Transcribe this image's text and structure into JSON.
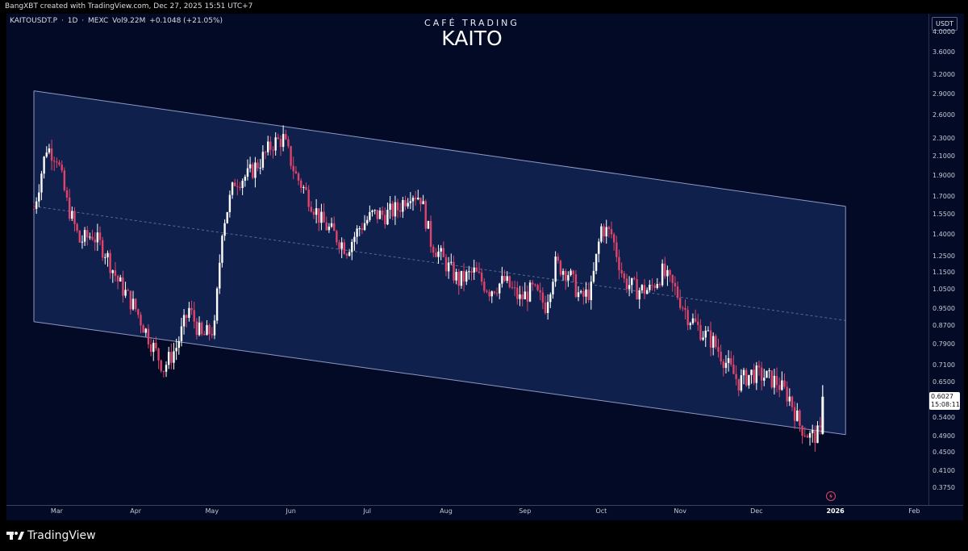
{
  "header": {
    "creator_line": "BangXBT created with TradingView.com, Dec 27, 2025 15:51 UTC+7",
    "symbol": "KAITOUSDT.P",
    "separator1": "·",
    "interval": "1D",
    "separator2": "·",
    "exchange": "MEXC",
    "volume": "Vol9.22M",
    "change": "+0.1048 (+21.05%)"
  },
  "watermark": {
    "brand": "CAFÉ TRADING",
    "coin": "KAITO"
  },
  "price_axis": {
    "unit": "USDT",
    "labels": [
      "4.0000",
      "3.6000",
      "3.2000",
      "2.9000",
      "2.6000",
      "2.3000",
      "2.1000",
      "1.9000",
      "1.7000",
      "1.5500",
      "1.4000",
      "1.2500",
      "1.1500",
      "1.0500",
      "0.9500",
      "0.8700",
      "0.7900",
      "0.7100",
      "0.6500",
      "0.5900",
      "0.5400",
      "0.4900",
      "0.4500",
      "0.4100",
      "0.3750"
    ],
    "current_price": "0.6027",
    "countdown": "15:08:11"
  },
  "time_axis": {
    "labels": [
      "Mar",
      "Apr",
      "May",
      "Jun",
      "Jul",
      "Aug",
      "Sep",
      "Oct",
      "Nov",
      "Dec",
      "2026",
      "Feb"
    ]
  },
  "footer": {
    "logo_text": "TradingView"
  },
  "colors": {
    "background": "#030a26",
    "up_candle": "#ffffff",
    "down_candle": "#e0446a",
    "channel_fill": "#14285a",
    "channel_line": "#8d99c4"
  },
  "icons": [
    "tradingview-logo-icon",
    "flash-icon"
  ],
  "chart_data": {
    "type": "candlestick",
    "symbol": "KAITOUSDT.P",
    "interval": "1D",
    "yscale": "log",
    "x_range": [
      "2025-02-20",
      "2026-02-05"
    ],
    "y_range": [
      0.35,
      4.1
    ],
    "channel": {
      "upper": [
        [
          "2025-02-20",
          2.95
        ],
        [
          "2026-01-05",
          1.62
        ]
      ],
      "lower": [
        [
          "2025-02-20",
          0.89
        ],
        [
          "2026-01-05",
          0.495
        ]
      ]
    },
    "approx_daily_closes": [
      [
        "2025-02-20",
        1.6
      ],
      [
        "2025-02-25",
        2.2
      ],
      [
        "2025-03-01",
        2.1
      ],
      [
        "2025-03-05",
        1.65
      ],
      [
        "2025-03-10",
        1.35
      ],
      [
        "2025-03-15",
        1.4
      ],
      [
        "2025-03-20",
        1.28
      ],
      [
        "2025-03-25",
        1.1
      ],
      [
        "2025-04-01",
        0.95
      ],
      [
        "2025-04-07",
        0.8
      ],
      [
        "2025-04-12",
        0.7
      ],
      [
        "2025-04-17",
        0.78
      ],
      [
        "2025-04-22",
        0.95
      ],
      [
        "2025-04-27",
        0.82
      ],
      [
        "2025-05-02",
        0.86
      ],
      [
        "2025-05-05",
        1.45
      ],
      [
        "2025-05-10",
        1.85
      ],
      [
        "2025-05-15",
        1.9
      ],
      [
        "2025-05-20",
        2.05
      ],
      [
        "2025-05-25",
        2.25
      ],
      [
        "2025-05-29",
        2.3
      ],
      [
        "2025-06-03",
        1.9
      ],
      [
        "2025-06-08",
        1.7
      ],
      [
        "2025-06-13",
        1.5
      ],
      [
        "2025-06-18",
        1.4
      ],
      [
        "2025-06-23",
        1.3
      ],
      [
        "2025-06-28",
        1.45
      ],
      [
        "2025-07-03",
        1.55
      ],
      [
        "2025-07-08",
        1.55
      ],
      [
        "2025-07-13",
        1.6
      ],
      [
        "2025-07-18",
        1.75
      ],
      [
        "2025-07-22",
        1.7
      ],
      [
        "2025-07-26",
        1.35
      ],
      [
        "2025-08-01",
        1.2
      ],
      [
        "2025-08-06",
        1.1
      ],
      [
        "2025-08-12",
        1.15
      ],
      [
        "2025-08-18",
        1.05
      ],
      [
        "2025-08-24",
        1.1
      ],
      [
        "2025-08-30",
        1.0
      ],
      [
        "2025-09-04",
        1.05
      ],
      [
        "2025-09-09",
        0.97
      ],
      [
        "2025-09-13",
        1.2
      ],
      [
        "2025-09-18",
        1.15
      ],
      [
        "2025-09-23",
        1.0
      ],
      [
        "2025-09-27",
        1.05
      ],
      [
        "2025-10-01",
        1.45
      ],
      [
        "2025-10-05",
        1.4
      ],
      [
        "2025-10-10",
        1.1
      ],
      [
        "2025-10-15",
        1.05
      ],
      [
        "2025-10-20",
        1.05
      ],
      [
        "2025-10-25",
        1.15
      ],
      [
        "2025-10-30",
        1.05
      ],
      [
        "2025-11-04",
        0.92
      ],
      [
        "2025-11-09",
        0.85
      ],
      [
        "2025-11-14",
        0.8
      ],
      [
        "2025-11-19",
        0.72
      ],
      [
        "2025-11-24",
        0.65
      ],
      [
        "2025-11-29",
        0.68
      ],
      [
        "2025-12-04",
        0.67
      ],
      [
        "2025-12-09",
        0.65
      ],
      [
        "2025-12-14",
        0.6
      ],
      [
        "2025-12-18",
        0.52
      ],
      [
        "2025-12-22",
        0.49
      ],
      [
        "2025-12-26",
        0.497
      ],
      [
        "2025-12-27",
        0.6027
      ]
    ]
  }
}
